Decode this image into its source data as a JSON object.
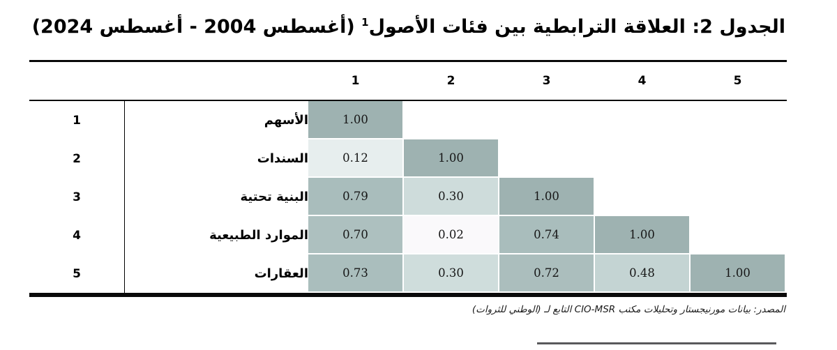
{
  "title": {
    "text": "الجدول 2: العلاقة الترابطية بين فئات الأصول",
    "footnote_marker": "1",
    "period": " (أغسطس 2004 - أغسطس 2024)"
  },
  "matrix": {
    "column_headers": [
      "1",
      "2",
      "3",
      "4",
      "5"
    ],
    "rows": [
      {
        "index": "1",
        "label": "الأسهم",
        "cells": [
          {
            "value": "1.00",
            "bg": "#9eb2b1"
          }
        ]
      },
      {
        "index": "2",
        "label": "السندات",
        "cells": [
          {
            "value": "0.12",
            "bg": "#e7eeee"
          },
          {
            "value": "1.00",
            "bg": "#9eb2b1"
          }
        ]
      },
      {
        "index": "3",
        "label": "البنية تحتية",
        "cells": [
          {
            "value": "0.79",
            "bg": "#a9bdbc"
          },
          {
            "value": "0.30",
            "bg": "#cedcdb"
          },
          {
            "value": "1.00",
            "bg": "#9eb2b1"
          }
        ]
      },
      {
        "index": "4",
        "label": "الموارد الطبيعية",
        "cells": [
          {
            "value": "0.70",
            "bg": "#adc0bf"
          },
          {
            "value": "0.02",
            "bg": "#faf9fb"
          },
          {
            "value": "0.74",
            "bg": "#a9bdbc"
          },
          {
            "value": "1.00",
            "bg": "#9eb2b1"
          }
        ]
      },
      {
        "index": "5",
        "label": "العقارات",
        "cells": [
          {
            "value": "0.73",
            "bg": "#aabebd"
          },
          {
            "value": "0.30",
            "bg": "#cfdddc"
          },
          {
            "value": "0.72",
            "bg": "#abbebd"
          },
          {
            "value": "0.48",
            "bg": "#c4d4d3"
          },
          {
            "value": "1.00",
            "bg": "#9eb2b1"
          }
        ]
      }
    ]
  },
  "source": {
    "text": "المصدر: بيانات مورنيجستار وتحليلات مكتب CIO-MSR التابع لـ (الوطني للثروات)"
  },
  "colors": {
    "diagonal_cell": "#9eb2b1",
    "rule": "#0a0a0a",
    "footer_divider": "#59595b",
    "background": "#ffffff"
  },
  "chart_data": {
    "type": "heatmap",
    "title": "الجدول 2: العلاقة الترابطية بين فئات الأصول (أغسطس 2004 - أغسطس 2024)",
    "categories": [
      "الأسهم",
      "السندات",
      "البنية تحتية",
      "الموارد الطبيعية",
      "العقارات"
    ],
    "column_labels": [
      1,
      2,
      3,
      4,
      5
    ],
    "matrix_lower_triangle": [
      [
        1.0
      ],
      [
        0.12,
        1.0
      ],
      [
        0.79,
        0.3,
        1.0
      ],
      [
        0.7,
        0.02,
        0.74,
        1.0
      ],
      [
        0.73,
        0.3,
        0.72,
        0.48,
        1.0
      ]
    ],
    "value_range": [
      0,
      1
    ],
    "colormap": "white-to-gray-teal",
    "source_note": "المصدر: بيانات مورنيجستار وتحليلات مكتب CIO-MSR التابع لـ (الوطني للثروات)"
  }
}
